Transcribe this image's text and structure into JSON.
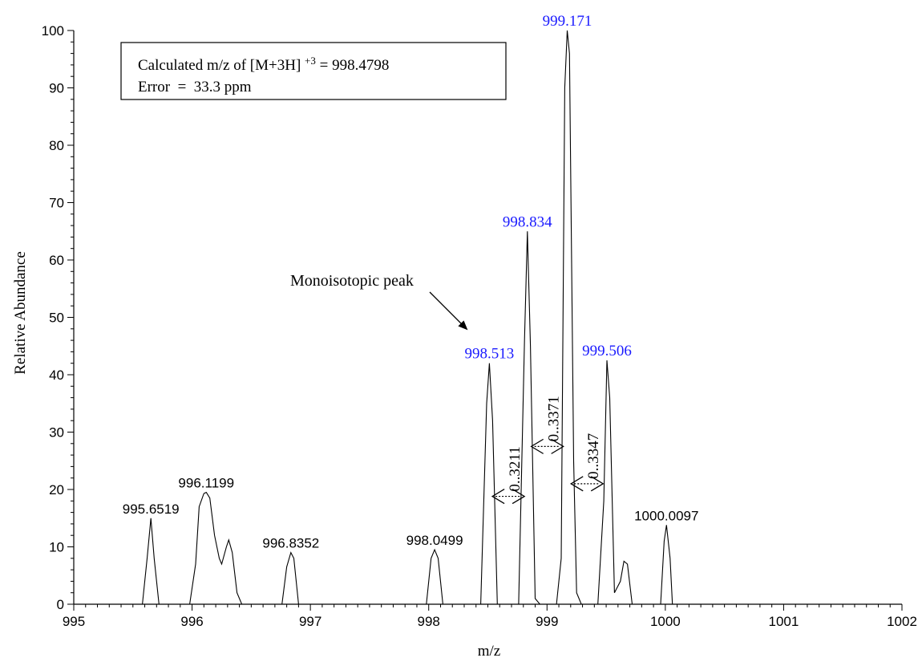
{
  "chart_data": {
    "type": "line",
    "title": "",
    "xlabel": "m/z",
    "ylabel": "Relative Abundance",
    "xlim": [
      995,
      1002
    ],
    "ylim": [
      0,
      100
    ],
    "xticks": [
      "995",
      "996",
      "997",
      "998",
      "999",
      "1000",
      "1001",
      "1002"
    ],
    "yticks": [
      "0",
      "10",
      "20",
      "30",
      "40",
      "50",
      "60",
      "70",
      "80",
      "90",
      "100"
    ],
    "grid": false,
    "trace": [
      [
        995.0,
        0
      ],
      [
        995.58,
        0
      ],
      [
        995.62,
        8
      ],
      [
        995.652,
        15
      ],
      [
        995.68,
        8
      ],
      [
        995.72,
        0
      ],
      [
        995.98,
        0
      ],
      [
        996.03,
        7
      ],
      [
        996.06,
        17
      ],
      [
        996.1,
        19.3
      ],
      [
        996.12,
        19.5
      ],
      [
        996.15,
        18.5
      ],
      [
        996.19,
        12
      ],
      [
        996.23,
        8
      ],
      [
        996.25,
        7
      ],
      [
        996.29,
        10
      ],
      [
        996.31,
        11.2
      ],
      [
        996.34,
        9
      ],
      [
        996.38,
        2
      ],
      [
        996.42,
        0
      ],
      [
        996.76,
        0
      ],
      [
        996.8,
        6.5
      ],
      [
        996.835,
        9
      ],
      [
        996.86,
        8
      ],
      [
        996.9,
        0
      ],
      [
        997.98,
        0
      ],
      [
        998.02,
        8
      ],
      [
        998.05,
        9.5
      ],
      [
        998.08,
        8
      ],
      [
        998.12,
        0
      ],
      [
        998.44,
        0
      ],
      [
        998.49,
        35
      ],
      [
        998.513,
        42
      ],
      [
        998.54,
        32
      ],
      [
        998.58,
        0
      ],
      [
        998.76,
        0
      ],
      [
        998.81,
        46
      ],
      [
        998.834,
        65
      ],
      [
        998.86,
        45
      ],
      [
        998.9,
        1
      ],
      [
        998.94,
        0
      ],
      [
        999.08,
        0
      ],
      [
        999.12,
        8
      ],
      [
        999.15,
        90
      ],
      [
        999.171,
        100
      ],
      [
        999.19,
        96
      ],
      [
        999.225,
        25
      ],
      [
        999.25,
        2
      ],
      [
        999.29,
        0
      ],
      [
        999.43,
        0
      ],
      [
        999.48,
        18
      ],
      [
        999.506,
        42.5
      ],
      [
        999.53,
        36
      ],
      [
        999.57,
        2
      ],
      [
        999.62,
        4
      ],
      [
        999.65,
        7.5
      ],
      [
        999.68,
        7
      ],
      [
        999.72,
        0
      ],
      [
        999.96,
        0
      ],
      [
        999.99,
        11
      ],
      [
        1000.01,
        13.8
      ],
      [
        1000.04,
        8
      ],
      [
        1000.06,
        0
      ],
      [
        1002.0,
        0
      ]
    ],
    "peak_labels": [
      {
        "mz": 995.6519,
        "y": 15,
        "text": "995.6519",
        "color": "#000000"
      },
      {
        "mz": 996.1199,
        "y": 19.5,
        "text": "996.1199",
        "color": "#000000"
      },
      {
        "mz": 996.8352,
        "y": 9,
        "text": "996.8352",
        "color": "#000000"
      },
      {
        "mz": 998.0499,
        "y": 9.5,
        "text": "998.0499",
        "color": "#000000"
      },
      {
        "mz": 998.513,
        "y": 42,
        "text": "998.513",
        "color": "#1a1aff"
      },
      {
        "mz": 998.834,
        "y": 65,
        "text": "998.834",
        "color": "#1a1aff"
      },
      {
        "mz": 999.171,
        "y": 100,
        "text": "999.171",
        "color": "#1a1aff"
      },
      {
        "mz": 999.506,
        "y": 42.5,
        "text": "999.506",
        "color": "#1a1aff"
      },
      {
        "mz": 1000.0097,
        "y": 13.8,
        "text": "1000.0097",
        "color": "#000000"
      }
    ],
    "deltas": [
      {
        "from": 998.513,
        "to": 998.834,
        "y": 18.8,
        "text": "0..3211"
      },
      {
        "from": 998.834,
        "to": 999.171,
        "y": 27.5,
        "text": "0..3371"
      },
      {
        "from": 999.171,
        "to": 999.506,
        "y": 21,
        "text": "0..3347"
      }
    ],
    "info_box": {
      "line1_main": "Calculated m/z of [M+3H]",
      "line1_sup": "+3",
      "line1_tail": " = 998.4798",
      "line2": "Error  =  33.3 ppm"
    },
    "annotation": {
      "text": "Monoisotopic peak",
      "target_mz": 998.513
    }
  }
}
